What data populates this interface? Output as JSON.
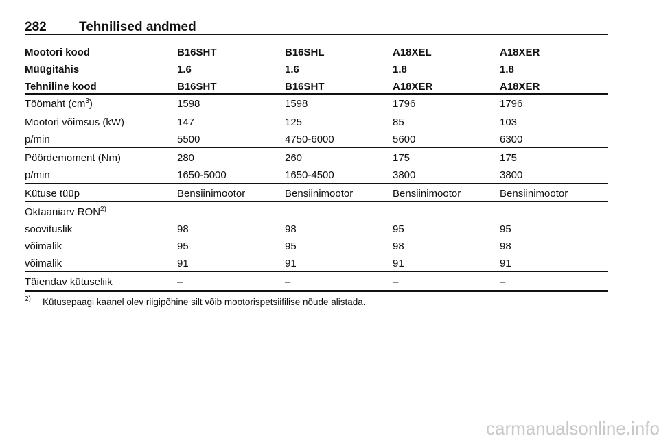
{
  "header": {
    "page": "282",
    "title": "Tehnilised andmed"
  },
  "table": {
    "head": [
      [
        "Mootori kood",
        "B16SHT",
        "B16SHL",
        "A18XEL",
        "A18XER"
      ],
      [
        "Müügitähis",
        "1.6",
        "1.6",
        "1.8",
        "1.8"
      ],
      [
        "Tehniline kood",
        "B16SHT",
        "B16SHT",
        "A18XER",
        "A18XER"
      ]
    ],
    "groups": [
      [
        [
          {
            "text": "Töömaht (cm",
            "sup": "3",
            "after": ")"
          },
          "1598",
          "1598",
          "1796",
          "1796"
        ]
      ],
      [
        [
          "Mootori võimsus (kW)",
          "147",
          "125",
          "85",
          "103"
        ],
        [
          "p/min",
          "5500",
          "4750-6000",
          "5600",
          "6300"
        ]
      ],
      [
        [
          "Pöördemoment (Nm)",
          "280",
          "260",
          "175",
          "175"
        ],
        [
          "p/min",
          "1650-5000",
          "1650-4500",
          "3800",
          "3800"
        ]
      ],
      [
        [
          "Kütuse tüüp",
          "Bensiinimootor",
          "Bensiinimootor",
          "Bensiinimootor",
          "Bensiinimootor"
        ]
      ],
      [
        [
          {
            "text": "Oktaaniarv RON",
            "sup": "2)"
          }
        ],
        [
          "soovituslik",
          "98",
          "98",
          "95",
          "95"
        ],
        [
          "võimalik",
          "95",
          "95",
          "98",
          "98"
        ],
        [
          "võimalik",
          "91",
          "91",
          "91",
          "91"
        ]
      ],
      [
        [
          "Täiendav kütuseliik",
          "–",
          "–",
          "–",
          "–"
        ]
      ]
    ]
  },
  "footnote": {
    "marker": "2)",
    "text": "Kütusepaagi kaanel olev riigipõhine silt võib mootorispetsiifilise nõude alistada."
  },
  "watermark": "carmanualsonline.info"
}
